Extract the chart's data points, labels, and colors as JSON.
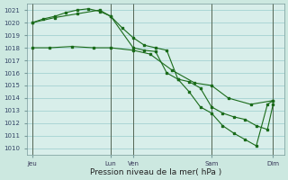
{
  "background_color": "#cce8e0",
  "plot_bg": "#d8eeea",
  "grid_color": "#99cccc",
  "line_color": "#1a6b1a",
  "marker_color": "#1a6b1a",
  "x_tick_labels": [
    "Jeu",
    "Lun",
    "Ven",
    "Sam",
    "Dim"
  ],
  "x_tick_positions": [
    0.5,
    7.5,
    9.5,
    16.5,
    22
  ],
  "xlabel": "Pression niveau de la mer( hPa )",
  "ylim": [
    1009.5,
    1021.5
  ],
  "xlim": [
    0,
    23
  ],
  "yticks": [
    1010,
    1011,
    1012,
    1013,
    1014,
    1015,
    1016,
    1017,
    1018,
    1019,
    1020,
    1021
  ],
  "series1_x": [
    0.5,
    1.5,
    2.5,
    3.5,
    4.5,
    5.5,
    6.5,
    7.5,
    8.5,
    9.5,
    10.5,
    11.5,
    12.5,
    13.5,
    14.5,
    15.5,
    16.5,
    17.5,
    18.5,
    19.5,
    20.5,
    21.5,
    22.0
  ],
  "series1_y": [
    1020.0,
    1020.3,
    1020.5,
    1020.8,
    1021.0,
    1021.1,
    1020.9,
    1020.5,
    1019.6,
    1018.8,
    1018.2,
    1018.0,
    1017.8,
    1015.5,
    1015.3,
    1014.8,
    1013.3,
    1012.8,
    1012.5,
    1012.3,
    1011.8,
    1011.5,
    1013.5
  ],
  "series2_x": [
    0.5,
    2,
    4,
    6,
    7.5,
    9.5,
    11,
    13,
    15,
    16.5,
    18,
    20,
    22
  ],
  "series2_y": [
    1018.0,
    1018.0,
    1018.1,
    1018.0,
    1018.0,
    1017.8,
    1017.5,
    1016.2,
    1015.2,
    1015.0,
    1014.0,
    1013.5,
    1013.8
  ],
  "series3_x": [
    0.5,
    2.5,
    4.5,
    6.5,
    7.5,
    9.5,
    10.5,
    11.5,
    12.5,
    13.5,
    14.5,
    15.5,
    16.5,
    17.5,
    18.5,
    19.5,
    20.5,
    21.5,
    22.0
  ],
  "series3_y": [
    1020.0,
    1020.4,
    1020.7,
    1021.0,
    1020.5,
    1018.0,
    1017.8,
    1017.7,
    1016.0,
    1015.5,
    1014.5,
    1013.3,
    1012.8,
    1011.8,
    1011.2,
    1010.7,
    1010.2,
    1013.5,
    1013.8
  ],
  "vline_positions": [
    0.5,
    7.5,
    9.5,
    16.5,
    22
  ],
  "vline_color": "#556655"
}
